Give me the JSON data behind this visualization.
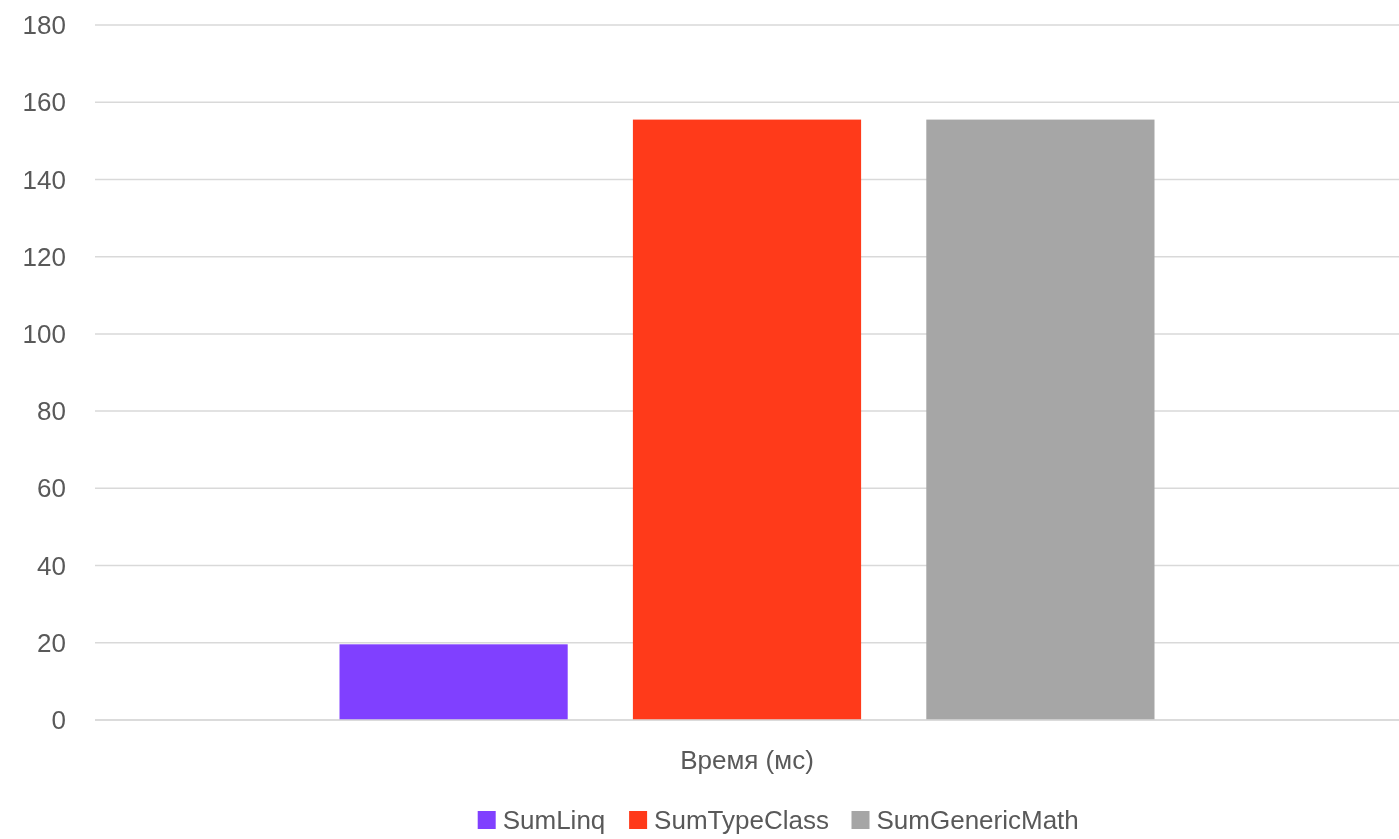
{
  "chart_data": {
    "type": "bar",
    "categories": [
      "Время (мс)"
    ],
    "series": [
      {
        "name": "SumLinq",
        "color": "#8040ff",
        "values": [
          19.6
        ]
      },
      {
        "name": "SumTypeClass",
        "color": "#ff3a1a",
        "values": [
          155.5
        ]
      },
      {
        "name": "SumGenericMath",
        "color": "#a6a6a6",
        "values": [
          155.5
        ]
      }
    ],
    "ylim": [
      0,
      180
    ],
    "yticks": [
      0,
      20,
      40,
      60,
      80,
      100,
      120,
      140,
      160,
      180
    ],
    "grid": "y",
    "legend": "bottom"
  }
}
